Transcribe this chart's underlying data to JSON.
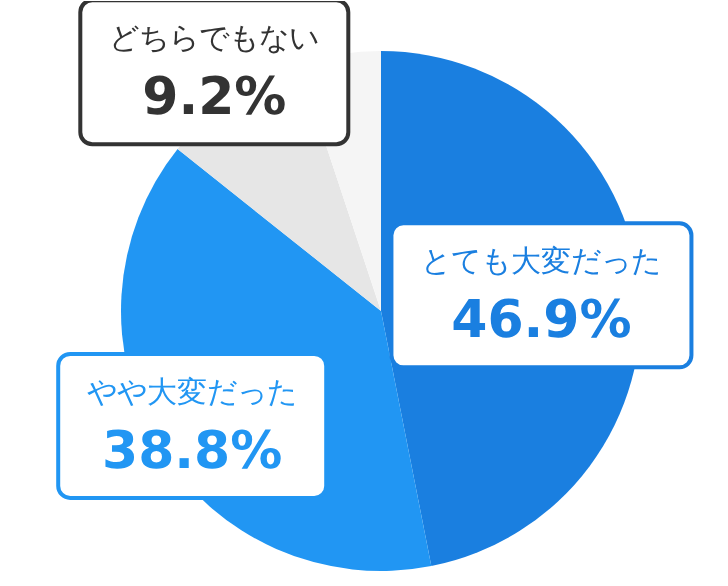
{
  "chart_data": {
    "type": "pie",
    "categories": [
      "とても大変だった",
      "やや大変だった",
      "どちらでもない",
      null
    ],
    "values": [
      46.9,
      38.8,
      9.2,
      5.1
    ],
    "colors": [
      "#1a7fe0",
      "#2196f3",
      "#e6e6e6",
      "#f5f5f5"
    ],
    "value_labels": [
      "46.9%",
      "38.8%",
      "9.2%",
      null
    ]
  }
}
